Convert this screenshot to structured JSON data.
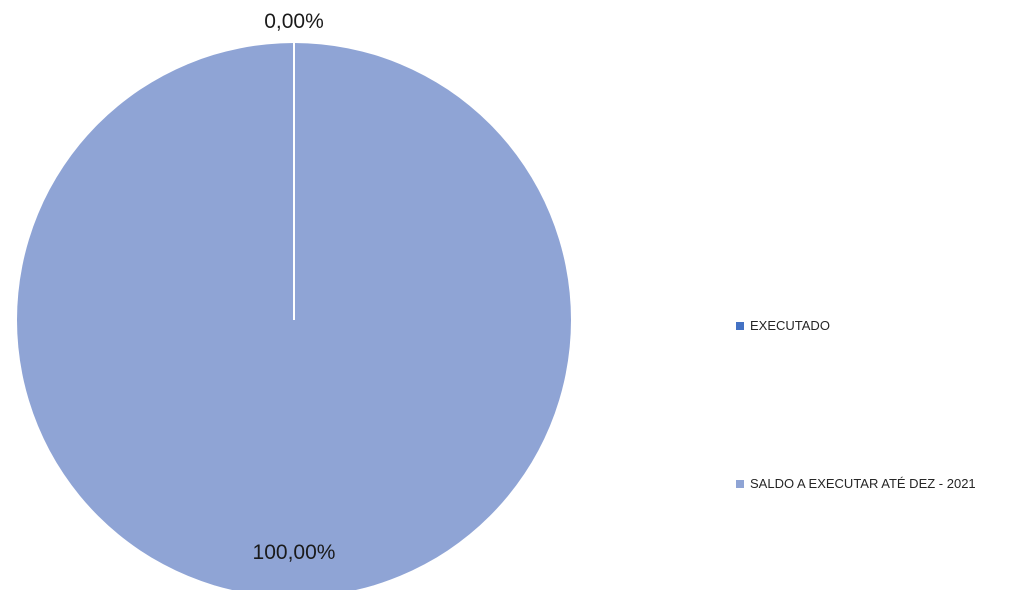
{
  "chart_data": {
    "type": "pie",
    "categories": [
      "EXECUTADO",
      "SALDO A EXECUTAR ATÉ DEZ - 2021"
    ],
    "values": [
      0.0,
      100.0
    ],
    "unit": "%",
    "data_labels": [
      "0,00%",
      "100,00%"
    ],
    "colors": [
      "#4472c4",
      "#8fa4d5"
    ],
    "legend_position": "right",
    "title": ""
  }
}
